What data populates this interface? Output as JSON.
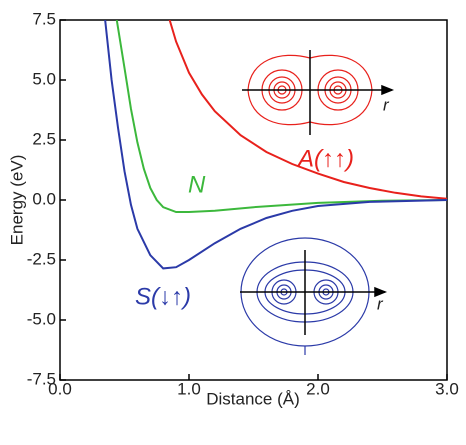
{
  "chart_data": {
    "type": "line",
    "x_label": "Distance (Å)",
    "y_label": "Energy (eV)",
    "xlim": [
      0,
      3
    ],
    "ylim": [
      -7.5,
      7.5
    ],
    "xticks": [
      {
        "value": 0,
        "label": "0.0"
      },
      {
        "value": 1,
        "label": "1.0"
      },
      {
        "value": 2,
        "label": "2.0"
      },
      {
        "value": 3,
        "label": "3.0"
      }
    ],
    "yticks": [
      -7.5,
      {
        "value": -5,
        "label": "-5.0"
      },
      -2.5,
      {
        "value": 0,
        "label": "0.0"
      },
      2.5,
      {
        "value": 5,
        "label": "5.0"
      },
      7.5
    ],
    "series": [
      {
        "name": "A(↑↑)",
        "color": "#e8211c",
        "x": [
          0.85,
          0.9,
          1.0,
          1.1,
          1.2,
          1.4,
          1.6,
          1.8,
          2.0,
          2.2,
          2.4,
          2.6,
          2.8,
          3.0
        ],
        "values": [
          7.5,
          6.6,
          5.3,
          4.4,
          3.7,
          2.7,
          2.0,
          1.5,
          1.1,
          0.75,
          0.5,
          0.3,
          0.15,
          0.05
        ]
      },
      {
        "name": "N",
        "color": "#3cb83c",
        "x": [
          0.44,
          0.5,
          0.55,
          0.6,
          0.65,
          0.7,
          0.75,
          0.8,
          0.9,
          1.0,
          1.2,
          1.5,
          2.0,
          2.5,
          3.0
        ],
        "values": [
          7.5,
          5.5,
          3.8,
          2.4,
          1.3,
          0.5,
          0.0,
          -0.3,
          -0.5,
          -0.5,
          -0.45,
          -0.3,
          -0.12,
          -0.03,
          0
        ]
      },
      {
        "name": "S(↓↑)",
        "color": "#2b3aa8",
        "x": [
          0.35,
          0.4,
          0.45,
          0.5,
          0.55,
          0.6,
          0.7,
          0.8,
          0.9,
          1.0,
          1.2,
          1.4,
          1.6,
          1.8,
          2.0,
          2.4,
          3.0
        ],
        "values": [
          7.5,
          5.0,
          3.0,
          1.2,
          -0.2,
          -1.2,
          -2.3,
          -2.85,
          -2.8,
          -2.5,
          -1.8,
          -1.2,
          -0.75,
          -0.45,
          -0.25,
          -0.08,
          0
        ]
      }
    ],
    "insets": [
      {
        "axis_label": "r"
      },
      {
        "axis_label": "r"
      }
    ]
  }
}
